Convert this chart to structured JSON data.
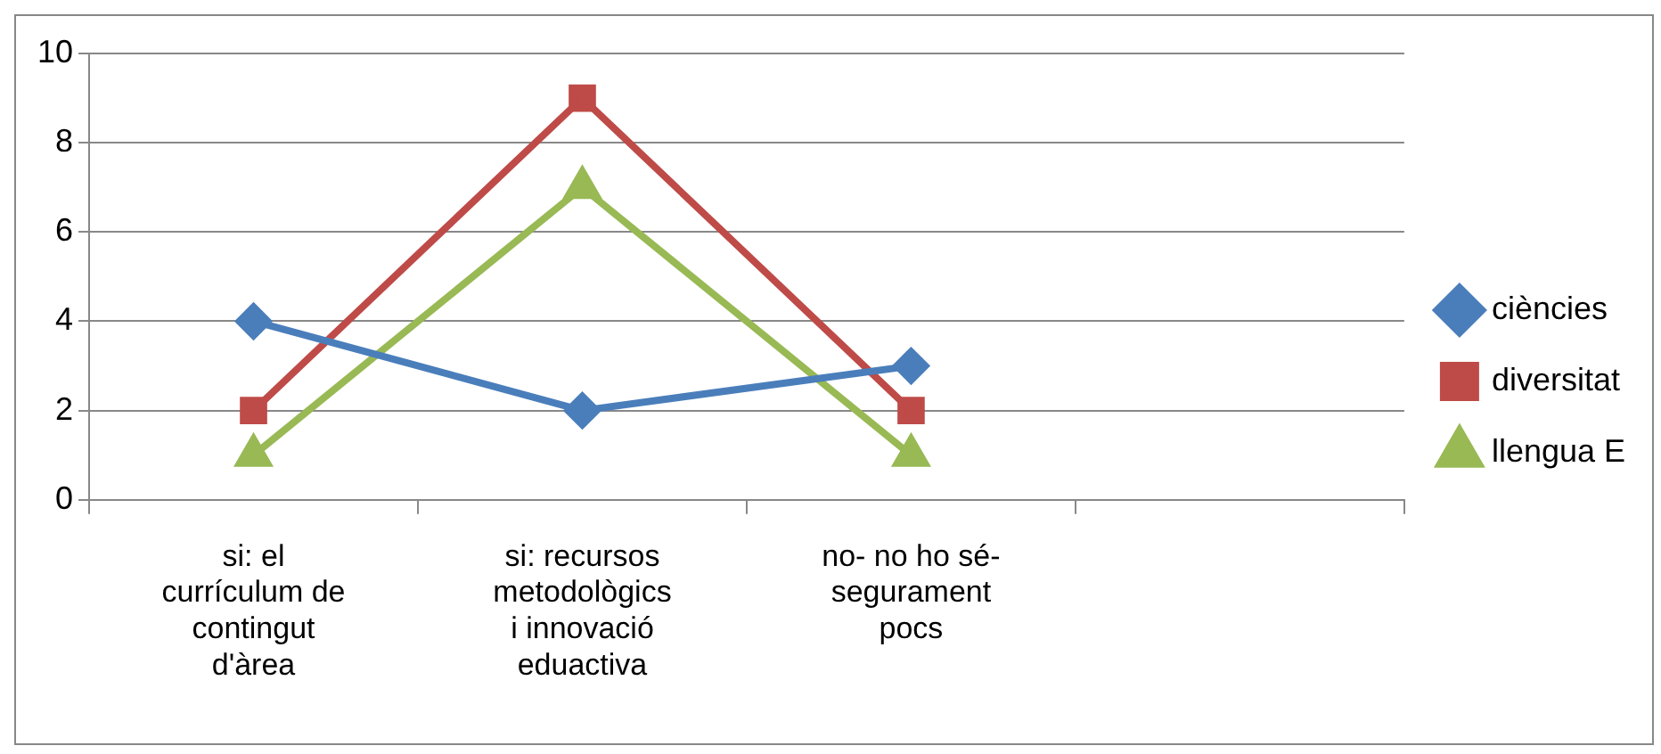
{
  "chart_data": {
    "type": "line",
    "categories": [
      "si: el currículum de contingut d'àrea",
      "si: recursos metodològics i innovació eduactiva",
      "no- no ho sé- segurament pocs",
      null
    ],
    "series": [
      {
        "name": "ciències",
        "color": "#4a7ebb",
        "marker": "diamond",
        "values": [
          4,
          2,
          3,
          null
        ]
      },
      {
        "name": "diversitat",
        "color": "#be4b48",
        "marker": "square",
        "values": [
          2,
          9,
          2,
          null
        ]
      },
      {
        "name": "llengua E",
        "color": "#98b954",
        "marker": "triangle",
        "values": [
          1,
          7,
          1,
          null
        ]
      }
    ],
    "ylim": [
      0,
      10
    ],
    "yticks": [
      0,
      2,
      4,
      6,
      8,
      10
    ],
    "grid": "y",
    "legend": "right",
    "line_style": "solid"
  }
}
